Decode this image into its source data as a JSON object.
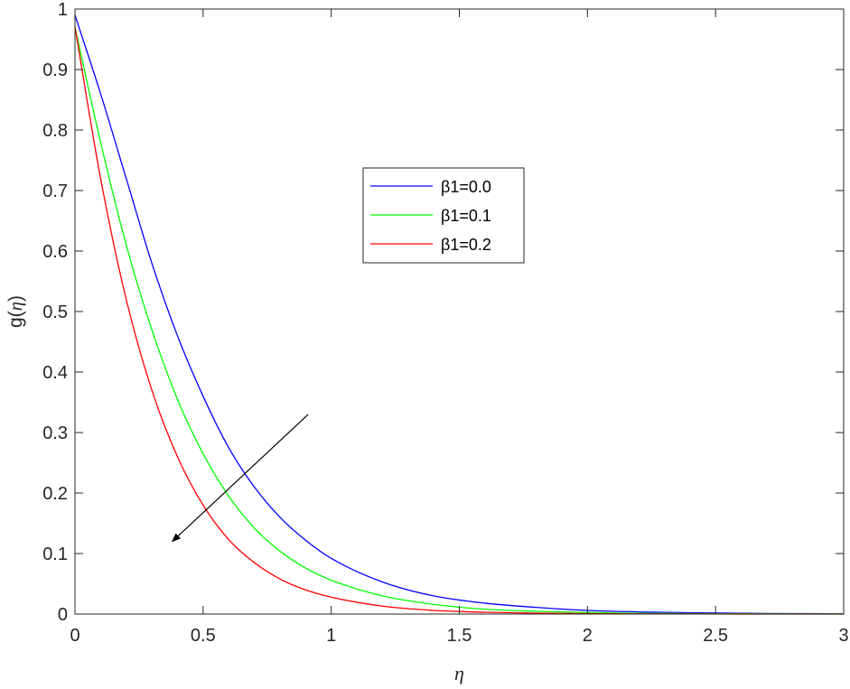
{
  "chart_data": {
    "type": "line",
    "xlabel": "η",
    "ylabel_prefix": "g(",
    "ylabel_var": "η",
    "ylabel_suffix": ")",
    "xlim": [
      0,
      3
    ],
    "ylim": [
      0,
      1
    ],
    "xticks": [
      "0",
      "0.5",
      "1",
      "1.5",
      "2",
      "2.5",
      "3"
    ],
    "yticks": [
      "0",
      "0.1",
      "0.2",
      "0.3",
      "0.4",
      "0.5",
      "0.6",
      "0.7",
      "0.8",
      "0.9",
      "1"
    ],
    "grid": false,
    "legend_position": "upper-center",
    "x": [
      0,
      0.1,
      0.2,
      0.3,
      0.4,
      0.5,
      0.6,
      0.7,
      0.8,
      0.9,
      1.0,
      1.2,
      1.4,
      1.6,
      1.8,
      2.0,
      2.2,
      2.4,
      2.6,
      2.8,
      3.0
    ],
    "series": [
      {
        "name": "β1=0.0",
        "color": "#0000ff",
        "values": [
          0.99,
          0.86,
          0.72,
          0.58,
          0.46,
          0.36,
          0.275,
          0.21,
          0.16,
          0.122,
          0.092,
          0.053,
          0.03,
          0.018,
          0.011,
          0.006,
          0.0036,
          0.0022,
          0.0013,
          0.0007,
          0.0004
        ]
      },
      {
        "name": "β1=0.1",
        "color": "#00ff00",
        "values": [
          0.97,
          0.78,
          0.61,
          0.47,
          0.355,
          0.265,
          0.195,
          0.142,
          0.104,
          0.076,
          0.056,
          0.03,
          0.016,
          0.008,
          0.0045,
          0.0025,
          0.0013,
          0.0007,
          0.0004,
          0.0002,
          0.0001
        ]
      },
      {
        "name": "β1=0.2",
        "color": "#ff0000",
        "values": [
          0.97,
          0.72,
          0.52,
          0.37,
          0.26,
          0.18,
          0.123,
          0.085,
          0.058,
          0.04,
          0.028,
          0.013,
          0.006,
          0.003,
          0.0015,
          0.0007,
          0.0003,
          0.0002,
          0.0001,
          0.0,
          0.0
        ]
      }
    ],
    "annotation_arrow": {
      "from": [
        0.91,
        0.33
      ],
      "to": [
        0.38,
        0.12
      ],
      "color": "#000000"
    }
  }
}
